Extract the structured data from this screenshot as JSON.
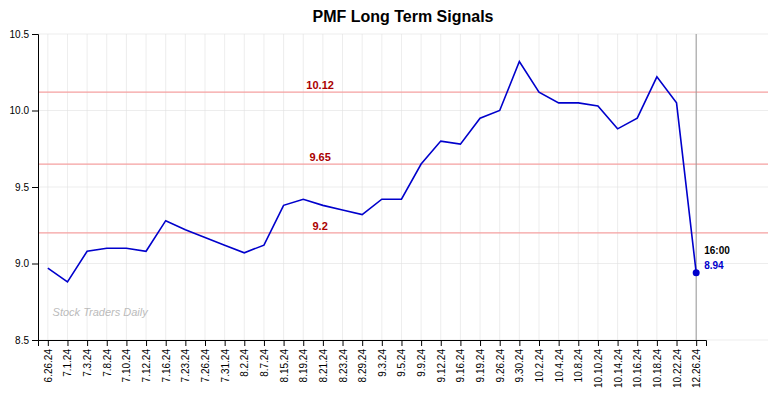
{
  "chart_data": {
    "type": "line",
    "title": "PMF Long Term Signals",
    "categories": [
      "6.26.24",
      "7.1.24",
      "7.3.24",
      "7.8.24",
      "7.10.24",
      "7.12.24",
      "7.16.24",
      "7.23.24",
      "7.26.24",
      "7.31.24",
      "8.2.24",
      "8.7.24",
      "8.15.24",
      "8.19.24",
      "8.21.24",
      "8.23.24",
      "8.29.24",
      "9.3.24",
      "9.5.24",
      "9.9.24",
      "9.12.24",
      "9.16.24",
      "9.19.24",
      "9.26.24",
      "9.30.24",
      "10.2.24",
      "10.4.24",
      "10.8.24",
      "10.10.24",
      "10.14.24",
      "10.16.24",
      "10.18.24",
      "10.22.24",
      "12.26.24"
    ],
    "values": [
      8.97,
      8.88,
      9.08,
      9.1,
      9.1,
      9.08,
      9.28,
      9.22,
      9.17,
      9.12,
      9.07,
      9.12,
      9.38,
      9.42,
      9.38,
      9.35,
      9.32,
      9.42,
      9.42,
      9.65,
      9.8,
      9.78,
      9.95,
      10.0,
      10.32,
      10.12,
      10.05,
      10.05,
      10.03,
      9.88,
      9.95,
      10.22,
      10.05,
      8.94
    ],
    "color": "#0000cc",
    "reference_lines": [
      {
        "value": 10.12,
        "label": "10.12",
        "color": "#f5a0a0",
        "label_color": "#aa0000"
      },
      {
        "value": 9.65,
        "label": "9.65",
        "color": "#f5a0a0",
        "label_color": "#aa0000"
      },
      {
        "value": 9.2,
        "label": "9.2",
        "color": "#f5a0a0",
        "label_color": "#aa0000"
      }
    ],
    "vline_color": "#999999",
    "annotations": [
      {
        "text": "16:00",
        "color": "#000000"
      },
      {
        "text": "8.94",
        "color": "#0000cc"
      }
    ],
    "watermark": "Stock Traders Daily",
    "ylim": [
      8.5,
      10.5
    ],
    "yticks": [
      8.5,
      {
        "value": 9.0,
        "label": "9.0"
      },
      9.5,
      {
        "value": 10.0,
        "label": "10.0"
      },
      10.5
    ],
    "grid": true
  }
}
